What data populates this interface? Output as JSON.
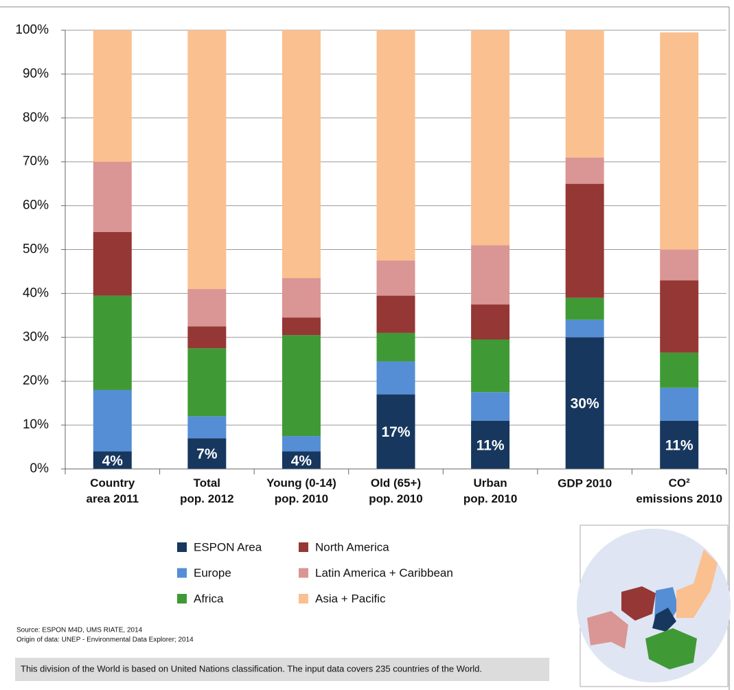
{
  "chart_data": {
    "type": "stacked_bar",
    "categories": [
      "Country\narea 2011",
      "Total\npop. 2012",
      "Young (0-14)\npop. 2010",
      "Old (65+)\npop. 2010",
      "Urban\npop. 2010",
      "GDP 2010",
      "CO²\nemissions 2010"
    ],
    "series": [
      {
        "name": "ESPON Area",
        "color": "#17375e",
        "values": [
          4,
          7,
          4,
          17,
          11,
          30,
          11
        ],
        "value_labels": [
          "4%",
          "7%",
          "4%",
          "17%",
          "11%",
          "30%",
          "11%"
        ]
      },
      {
        "name": "Europe",
        "color": "#558ed5",
        "values": [
          14,
          5,
          3.5,
          7.5,
          6.5,
          4,
          7.5
        ]
      },
      {
        "name": "Africa",
        "color": "#3f9a36",
        "values": [
          21.5,
          15.5,
          23,
          6.5,
          12,
          5,
          8
        ]
      },
      {
        "name": "North America",
        "color": "#953735",
        "values": [
          14.5,
          5,
          4,
          8.5,
          8,
          26,
          16.5
        ]
      },
      {
        "name": "Latin America + Caribbean",
        "color": "#d99694",
        "values": [
          16,
          8.5,
          9,
          8,
          13.5,
          6,
          7
        ]
      },
      {
        "name": "Asia + Pacific",
        "color": "#fac090",
        "values": [
          30,
          59,
          56.5,
          52.5,
          49,
          29,
          49.5
        ]
      }
    ],
    "ylim": [
      0,
      100
    ],
    "yticks": [
      {
        "value": 0,
        "label": "0%"
      },
      {
        "value": 10,
        "label": "10%"
      },
      {
        "value": 20,
        "label": "20%"
      },
      {
        "value": 30,
        "label": "30%"
      },
      {
        "value": 40,
        "label": "40%"
      },
      {
        "value": 50,
        "label": "50%"
      },
      {
        "value": 60,
        "label": "60%"
      },
      {
        "value": 70,
        "label": "70%"
      },
      {
        "value": 80,
        "label": "80%"
      },
      {
        "value": 90,
        "label": "90%"
      },
      {
        "value": 100,
        "label": "100%"
      }
    ],
    "grid": true
  },
  "source": "Source: ESPON M4D, UMS RIATE, 2014",
  "origin": "Origin of data: UNEP - Environmental Data Explorer; 2014",
  "note": "This division of the World is based on United Nations classification. The input data covers 235 countries of the World."
}
